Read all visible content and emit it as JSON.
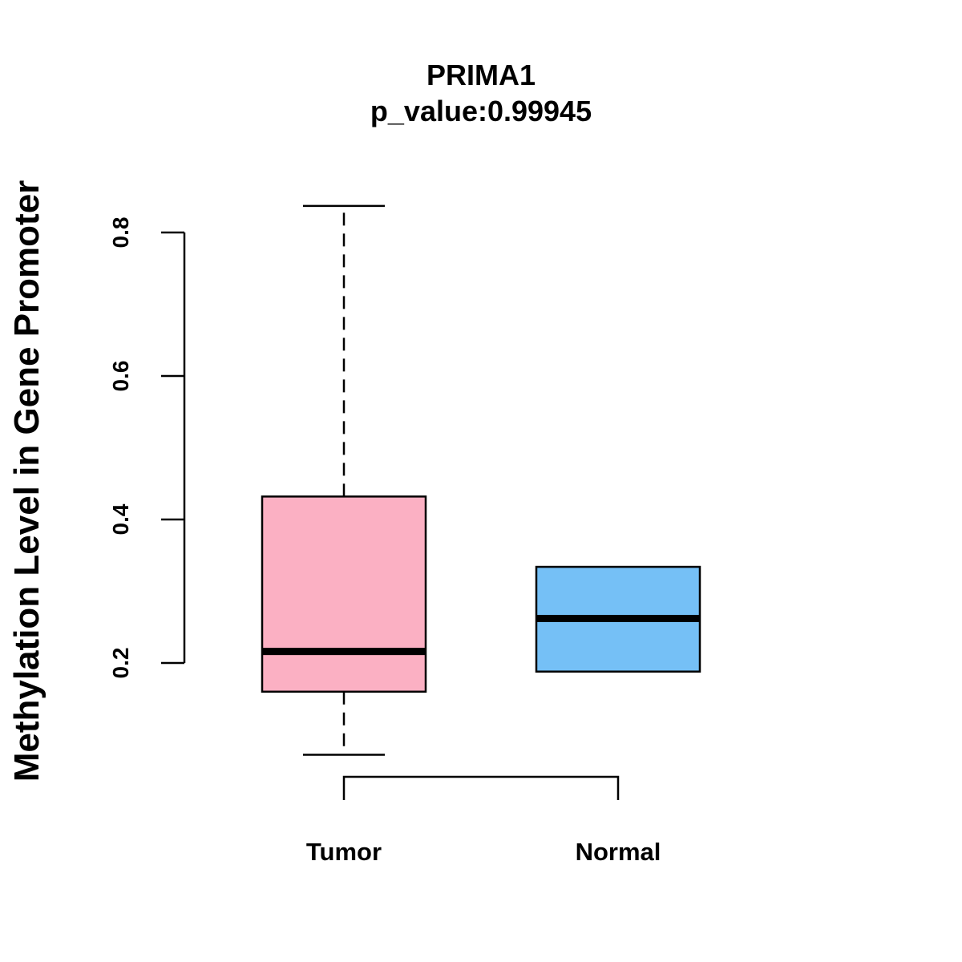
{
  "chart_data": {
    "type": "boxplot",
    "title": "PRIMA1",
    "subtitle": "p_value:0.99945",
    "xlabel": "",
    "ylabel": "Methylation Level in Gene Promoter",
    "y_ticks": [
      "0.2",
      "0.4",
      "0.6",
      "0.8"
    ],
    "grid": false,
    "categories": [
      "Tumor",
      "Normal"
    ],
    "boxes": [
      {
        "name": "Tumor",
        "min": 0.072,
        "q1": 0.16,
        "median": 0.216,
        "q3": 0.432,
        "max": 0.837,
        "color": "#FBB0C3"
      },
      {
        "name": "Normal",
        "min": 0.188,
        "q1": 0.188,
        "median": 0.262,
        "q3": 0.334,
        "max": 0.334,
        "color": "#75C0F6"
      }
    ],
    "comparison_bracket": [
      "Tumor",
      "Normal"
    ]
  }
}
